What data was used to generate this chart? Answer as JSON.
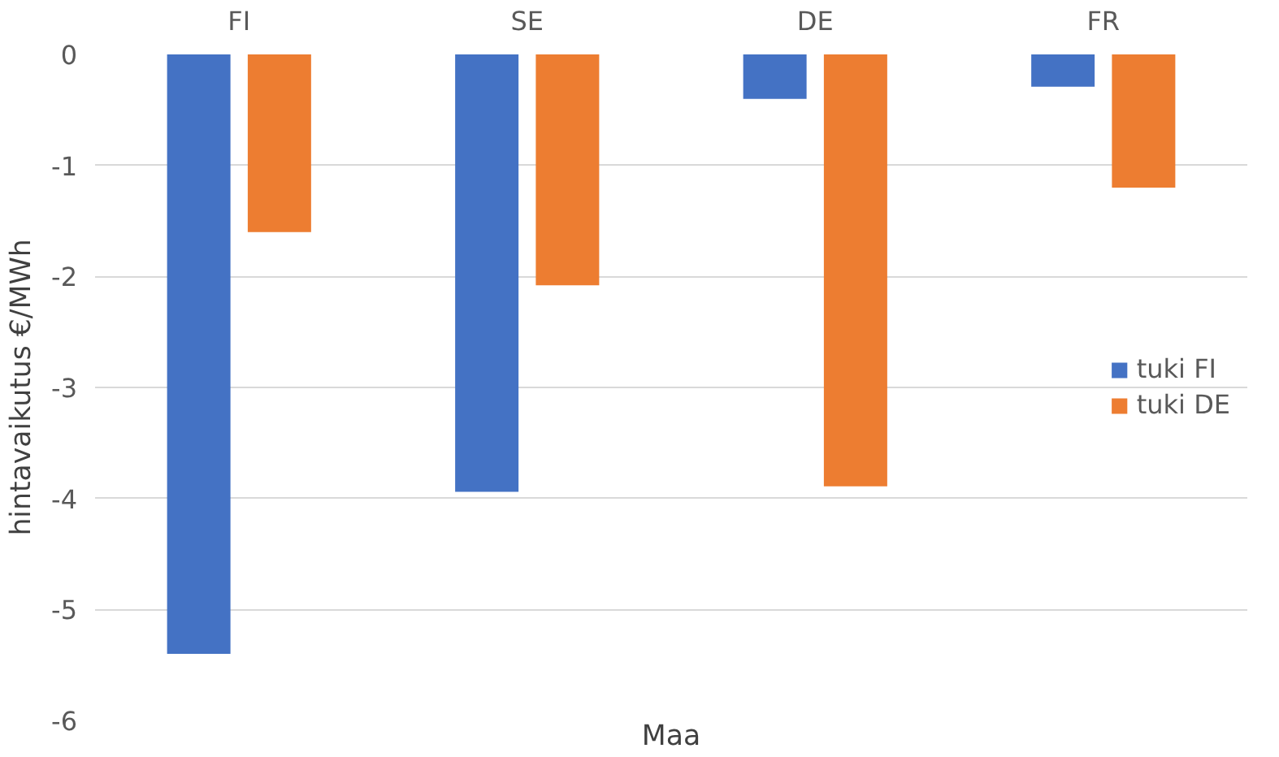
{
  "chart_data": {
    "type": "bar",
    "xlabel": "Maa",
    "ylabel": "hintavaikutus €/MWh",
    "categories": [
      "FI",
      "SE",
      "DE",
      "FR"
    ],
    "series": [
      {
        "name": "tuki FI",
        "color": "#4472c4",
        "values": [
          -5.4,
          -3.94,
          -0.4,
          -0.29
        ]
      },
      {
        "name": "tuki DE",
        "color": "#ed7d31",
        "values": [
          -1.6,
          -2.08,
          -3.89,
          -1.2
        ]
      }
    ],
    "ylim": [
      -6,
      0
    ],
    "yticks": [
      -6,
      -5,
      -4,
      -3,
      -2,
      -1,
      0
    ],
    "grid": "y",
    "legend": "right"
  }
}
